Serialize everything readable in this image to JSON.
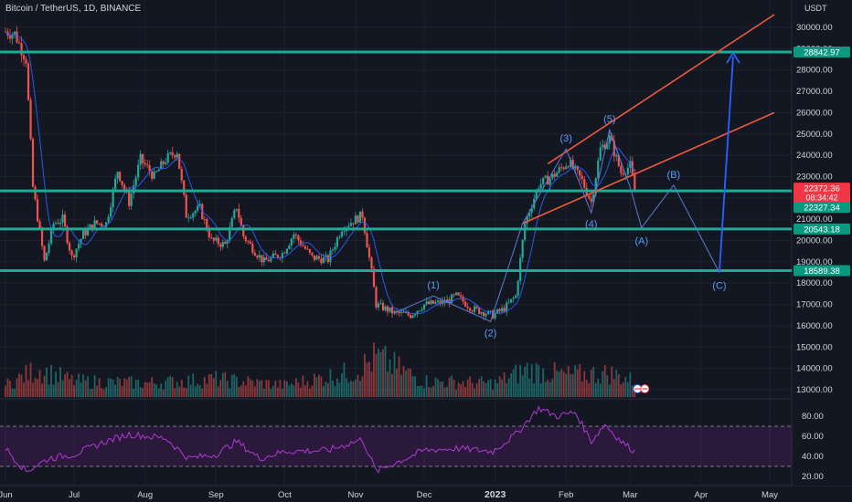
{
  "header": {
    "symbol": "Bitcoin / TetherUS, 1D, BINANCE"
  },
  "price_axis": {
    "currency": "USDT",
    "ticks": [
      "30000.00",
      "29000.00",
      "28000.00",
      "27000.00",
      "26000.00",
      "25000.00",
      "24000.00",
      "23000.00",
      "22000.00",
      "21000.00",
      "20000.00",
      "19000.00",
      "18000.00",
      "17000.00",
      "16000.00",
      "15000.00",
      "14000.00",
      "13000.00"
    ],
    "badges": {
      "level_top": "28842.97",
      "last_price": "22372.36",
      "countdown": "08:34:42",
      "level_near": "22327.34",
      "level_mid": "20543.18",
      "level_low": "18589.38"
    }
  },
  "rsi_axis": {
    "ticks": [
      "80.00",
      "60.00",
      "40.00",
      "20.00"
    ]
  },
  "time_axis": {
    "ticks": [
      "Jun",
      "Jul",
      "Aug",
      "Sep",
      "Oct",
      "Nov",
      "Dec",
      "2023",
      "Feb",
      "Mar",
      "Apr",
      "May"
    ]
  },
  "wave_labels": [
    "(1)",
    "(2)",
    "(3)",
    "(4)",
    "(5)",
    "(A)",
    "(B)",
    "(C)"
  ],
  "colors": {
    "background": "#131722",
    "up": "#26a69a",
    "down": "#ef5350",
    "support_lines": "#22ab94",
    "channel": "#f05a3c",
    "projection": "#2962ff",
    "rsi": "#9c27b0"
  },
  "chart_data": {
    "type": "candlestick",
    "symbol": "Bitcoin / TetherUS",
    "interval": "1D",
    "exchange": "BINANCE",
    "y_unit": "USDT",
    "ylim": [
      12700,
      30800
    ],
    "horizontal_levels": [
      28842.97,
      22327.34,
      20543.18,
      18589.38
    ],
    "last_price": 22372.36,
    "price_path": [
      [
        "2022-06-01",
        29800
      ],
      [
        "2022-06-05",
        29700
      ],
      [
        "2022-06-10",
        28500
      ],
      [
        "2022-06-13",
        22500
      ],
      [
        "2022-06-18",
        19000
      ],
      [
        "2022-06-22",
        20800
      ],
      [
        "2022-06-26",
        21000
      ],
      [
        "2022-06-30",
        19200
      ],
      [
        "2022-07-05",
        20300
      ],
      [
        "2022-07-10",
        20800
      ],
      [
        "2022-07-15",
        20800
      ],
      [
        "2022-07-20",
        23300
      ],
      [
        "2022-07-25",
        21800
      ],
      [
        "2022-07-30",
        23800
      ],
      [
        "2022-08-05",
        23000
      ],
      [
        "2022-08-10",
        23800
      ],
      [
        "2022-08-15",
        24200
      ],
      [
        "2022-08-19",
        21200
      ],
      [
        "2022-08-25",
        21500
      ],
      [
        "2022-08-30",
        20000
      ],
      [
        "2022-09-05",
        19800
      ],
      [
        "2022-09-10",
        21600
      ],
      [
        "2022-09-13",
        20200
      ],
      [
        "2022-09-18",
        19500
      ],
      [
        "2022-09-22",
        19000
      ],
      [
        "2022-09-30",
        19400
      ],
      [
        "2022-10-05",
        20300
      ],
      [
        "2022-10-13",
        19200
      ],
      [
        "2022-10-20",
        19100
      ],
      [
        "2022-10-26",
        20600
      ],
      [
        "2022-11-04",
        21200
      ],
      [
        "2022-11-08",
        18500
      ],
      [
        "2022-11-10",
        17000
      ],
      [
        "2022-11-18",
        16600
      ],
      [
        "2022-11-25",
        16500
      ],
      [
        "2022-12-01",
        17000
      ],
      [
        "2022-12-10",
        17100
      ],
      [
        "2022-12-15",
        17400
      ],
      [
        "2022-12-22",
        16800
      ],
      [
        "2022-12-31",
        16500
      ],
      [
        "2023-01-05",
        16800
      ],
      [
        "2023-01-10",
        17400
      ],
      [
        "2023-01-14",
        20800
      ],
      [
        "2023-01-20",
        22600
      ],
      [
        "2023-01-26",
        23000
      ],
      [
        "2023-02-02",
        23700
      ],
      [
        "2023-02-08",
        22800
      ],
      [
        "2023-02-12",
        21800
      ],
      [
        "2023-02-16",
        24300
      ],
      [
        "2023-02-20",
        24800
      ],
      [
        "2023-02-25",
        23200
      ],
      [
        "2023-03-01",
        23500
      ],
      [
        "2023-03-03",
        22372
      ]
    ],
    "volume_profile": [
      [
        "2022-06-01",
        0.3
      ],
      [
        "2022-06-15",
        0.7
      ],
      [
        "2022-07-01",
        0.4
      ],
      [
        "2022-08-01",
        0.35
      ],
      [
        "2022-09-01",
        0.45
      ],
      [
        "2022-10-01",
        0.3
      ],
      [
        "2022-11-01",
        0.65
      ],
      [
        "2022-11-10",
        1.0
      ],
      [
        "2022-12-01",
        0.4
      ],
      [
        "2023-01-01",
        0.35
      ],
      [
        "2023-01-15",
        0.7
      ],
      [
        "2023-02-01",
        0.55
      ],
      [
        "2023-02-20",
        0.6
      ],
      [
        "2023-03-03",
        0.4
      ]
    ],
    "channel_lines": [
      {
        "from": [
          "2023-01-13",
          20800
        ],
        "to": [
          "2023-05-03",
          26000
        ]
      },
      {
        "from": [
          "2023-01-24",
          23600
        ],
        "to": [
          "2023-05-03",
          30600
        ]
      }
    ],
    "elliott_wave": [
      {
        "label": "(1)",
        "date": "2022-12-05",
        "price": 17400
      },
      {
        "label": "(2)",
        "date": "2022-12-30",
        "price": 16200
      },
      {
        "label": "(3)",
        "date": "2023-02-01",
        "price": 24300
      },
      {
        "label": "(4)",
        "date": "2023-02-12",
        "price": 21300
      },
      {
        "label": "(5)",
        "date": "2023-02-20",
        "price": 25200
      }
    ],
    "projection": [
      {
        "label": "",
        "date": "2023-03-01",
        "price": 22500
      },
      {
        "label": "(A)",
        "date": "2023-03-06",
        "price": 20600
      },
      {
        "label": "(B)",
        "date": "2023-03-20",
        "price": 22600
      },
      {
        "label": "(C)",
        "date": "2023-04-09",
        "price": 18500
      },
      {
        "label": "",
        "date": "2023-04-15",
        "price": 28800
      }
    ],
    "rsi": {
      "bands": [
        70,
        30
      ],
      "ylim": [
        10,
        95
      ],
      "values": [
        [
          "2022-06-01",
          48
        ],
        [
          "2022-06-10",
          25
        ],
        [
          "2022-06-20",
          38
        ],
        [
          "2022-07-01",
          42
        ],
        [
          "2022-07-15",
          55
        ],
        [
          "2022-07-25",
          62
        ],
        [
          "2022-08-10",
          58
        ],
        [
          "2022-08-20",
          38
        ],
        [
          "2022-09-01",
          42
        ],
        [
          "2022-09-10",
          55
        ],
        [
          "2022-09-20",
          38
        ],
        [
          "2022-10-01",
          45
        ],
        [
          "2022-10-20",
          46
        ],
        [
          "2022-11-04",
          57
        ],
        [
          "2022-11-10",
          25
        ],
        [
          "2022-11-20",
          35
        ],
        [
          "2022-12-01",
          46
        ],
        [
          "2022-12-15",
          48
        ],
        [
          "2022-12-31",
          45
        ],
        [
          "2023-01-10",
          62
        ],
        [
          "2023-01-20",
          88
        ],
        [
          "2023-01-28",
          80
        ],
        [
          "2023-02-05",
          84
        ],
        [
          "2023-02-12",
          55
        ],
        [
          "2023-02-18",
          72
        ],
        [
          "2023-02-25",
          55
        ],
        [
          "2023-03-03",
          45
        ]
      ]
    }
  }
}
